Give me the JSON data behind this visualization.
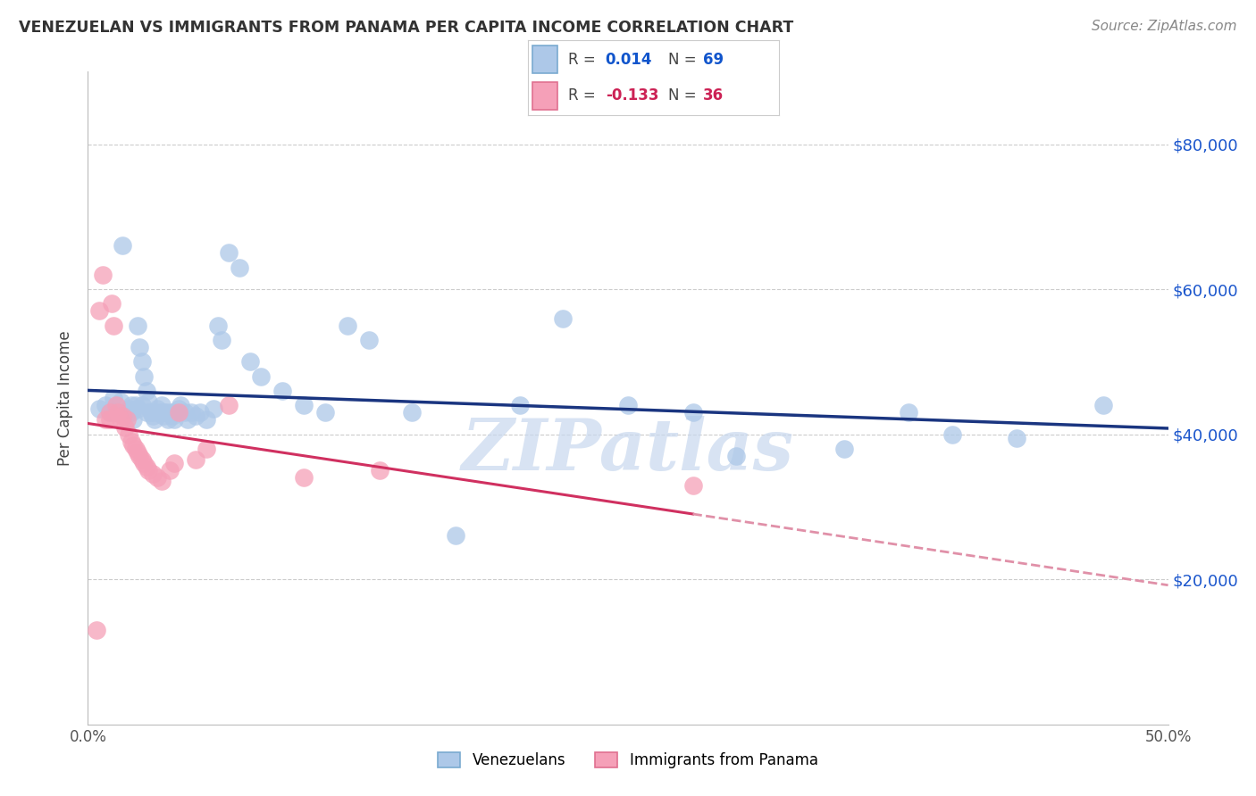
{
  "title": "VENEZUELAN VS IMMIGRANTS FROM PANAMA PER CAPITA INCOME CORRELATION CHART",
  "source": "Source: ZipAtlas.com",
  "ylabel": "Per Capita Income",
  "yticks": [
    20000,
    40000,
    60000,
    80000
  ],
  "ytick_labels": [
    "$20,000",
    "$40,000",
    "$60,000",
    "$80,000"
  ],
  "ylim": [
    0,
    90000
  ],
  "xlim": [
    0.0,
    0.5
  ],
  "xticks": [
    0.0,
    0.1,
    0.2,
    0.3,
    0.4,
    0.5
  ],
  "xtick_labels": [
    "0.0%",
    "",
    "",
    "",
    "",
    "50.0%"
  ],
  "legend_venezuelans": "Venezuelans",
  "legend_panama": "Immigrants from Panama",
  "R_blue": "0.014",
  "N_blue": "69",
  "R_pink": "-0.133",
  "N_pink": "36",
  "blue_color": "#adc8e8",
  "pink_color": "#f5a0b8",
  "blue_edge_color": "#7aaad0",
  "pink_edge_color": "#e07090",
  "blue_line_color": "#1a3580",
  "pink_line_color": "#d03060",
  "pink_dash_color": "#e090a8",
  "watermark": "ZIPatlas",
  "watermark_color": "#c8d8ee",
  "background_color": "#ffffff",
  "grid_color": "#cccccc",
  "title_color": "#333333",
  "source_color": "#888888",
  "legend_text_color": "#444444",
  "legend_blue_num_color": "#1155cc",
  "legend_pink_num_color": "#cc2255",
  "blue_scatter_x": [
    0.005,
    0.008,
    0.01,
    0.012,
    0.013,
    0.015,
    0.016,
    0.018,
    0.019,
    0.02,
    0.02,
    0.021,
    0.022,
    0.023,
    0.023,
    0.024,
    0.025,
    0.025,
    0.026,
    0.027,
    0.027,
    0.028,
    0.029,
    0.03,
    0.03,
    0.031,
    0.032,
    0.033,
    0.034,
    0.035,
    0.035,
    0.036,
    0.037,
    0.038,
    0.039,
    0.04,
    0.04,
    0.042,
    0.043,
    0.045,
    0.046,
    0.048,
    0.05,
    0.052,
    0.055,
    0.058,
    0.06,
    0.062,
    0.065,
    0.07,
    0.075,
    0.08,
    0.09,
    0.1,
    0.11,
    0.12,
    0.13,
    0.15,
    0.17,
    0.2,
    0.22,
    0.25,
    0.28,
    0.3,
    0.35,
    0.38,
    0.4,
    0.43,
    0.47
  ],
  "blue_scatter_y": [
    43500,
    44000,
    43000,
    45000,
    43000,
    44500,
    66000,
    43000,
    43500,
    44000,
    43000,
    42000,
    44000,
    55000,
    43500,
    52000,
    44000,
    50000,
    48000,
    46000,
    43000,
    44500,
    43000,
    42500,
    43000,
    42000,
    43500,
    43000,
    44000,
    43000,
    42500,
    43000,
    42000,
    43000,
    42500,
    42000,
    43000,
    43500,
    44000,
    43000,
    42000,
    43000,
    42500,
    43000,
    42000,
    43500,
    55000,
    53000,
    65000,
    63000,
    50000,
    48000,
    46000,
    44000,
    43000,
    55000,
    53000,
    43000,
    26000,
    44000,
    56000,
    44000,
    43000,
    37000,
    38000,
    43000,
    40000,
    39500,
    44000
  ],
  "pink_scatter_x": [
    0.004,
    0.005,
    0.007,
    0.008,
    0.01,
    0.01,
    0.011,
    0.012,
    0.013,
    0.014,
    0.015,
    0.016,
    0.017,
    0.018,
    0.019,
    0.02,
    0.021,
    0.022,
    0.023,
    0.024,
    0.025,
    0.026,
    0.027,
    0.028,
    0.03,
    0.032,
    0.034,
    0.038,
    0.04,
    0.042,
    0.05,
    0.055,
    0.065,
    0.1,
    0.135,
    0.28
  ],
  "pink_scatter_y": [
    13000,
    57000,
    62000,
    42000,
    43000,
    42000,
    58000,
    55000,
    44000,
    43000,
    42000,
    42500,
    41000,
    42000,
    40000,
    39000,
    38500,
    38000,
    37500,
    37000,
    36500,
    36000,
    35500,
    35000,
    34500,
    34000,
    33500,
    35000,
    36000,
    43000,
    36500,
    38000,
    44000,
    34000,
    35000,
    33000
  ]
}
